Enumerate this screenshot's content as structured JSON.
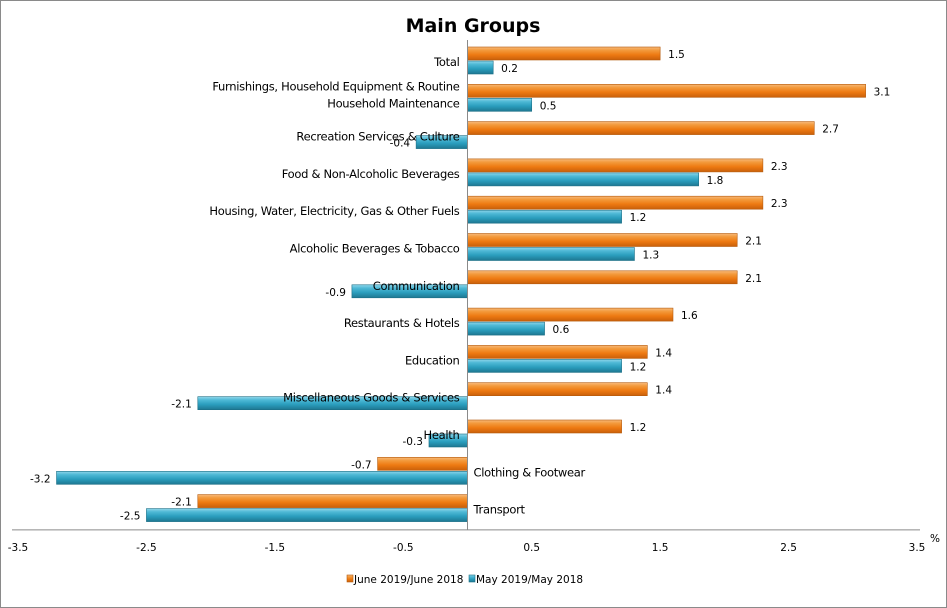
{
  "chart_data": {
    "type": "bar",
    "orientation": "horizontal",
    "title": "Main Groups",
    "xlabel": "%",
    "ylabel": "",
    "xlim": [
      -3.5,
      3.5
    ],
    "xticks": [
      -3.5,
      -2.5,
      -1.5,
      -0.5,
      0.5,
      1.5,
      2.5,
      3.5
    ],
    "xtick_labels": [
      "-3.5",
      "-2.5",
      "-1.5",
      "-0.5",
      "0.5",
      "1.5",
      "2.5",
      "3.5"
    ],
    "grid": false,
    "legend_position": "bottom",
    "categories": [
      [
        "Total"
      ],
      [
        "Furnishings, Household Equipment &  Routine",
        "Household Maintenance"
      ],
      [
        "Recreation Services & Culture"
      ],
      [
        "Food & Non-Alcoholic Beverages"
      ],
      [
        "Housing, Water, Electricity, Gas & Other Fuels"
      ],
      [
        "Alcoholic Beverages  & Tobacco"
      ],
      [
        "Communication"
      ],
      [
        "Restaurants & Hotels"
      ],
      [
        "Education"
      ],
      [
        "Miscellaneous Goods & Services"
      ],
      [
        "Health"
      ],
      [
        "Clothing & Footwear"
      ],
      [
        "Transport"
      ]
    ],
    "series": [
      {
        "name": "June 2019/June 2018",
        "color": "#F07F12",
        "values": [
          1.5,
          3.1,
          2.7,
          2.3,
          2.3,
          2.1,
          2.1,
          1.6,
          1.4,
          1.4,
          1.2,
          -0.7,
          -2.1
        ],
        "labels": [
          "1.5",
          "3.1",
          "2.7",
          "2.3",
          "2.3",
          "2.1",
          "2.1",
          "1.6",
          "1.4",
          "1.4",
          "1.2",
          "-0.7",
          "-2.1"
        ]
      },
      {
        "name": "May 2019/May 2018",
        "color": "#2FA3C2",
        "values": [
          0.2,
          0.5,
          -0.4,
          1.8,
          1.2,
          1.3,
          -0.9,
          0.6,
          1.2,
          -2.1,
          -0.3,
          -3.2,
          -2.5
        ],
        "labels": [
          "0.2",
          "0.5",
          "-0.4",
          "1.8",
          "1.2",
          "1.3",
          "-0.9",
          "0.6",
          "1.2",
          "-2.1",
          "-0.3",
          "-3.2",
          "-2.5"
        ]
      }
    ]
  }
}
